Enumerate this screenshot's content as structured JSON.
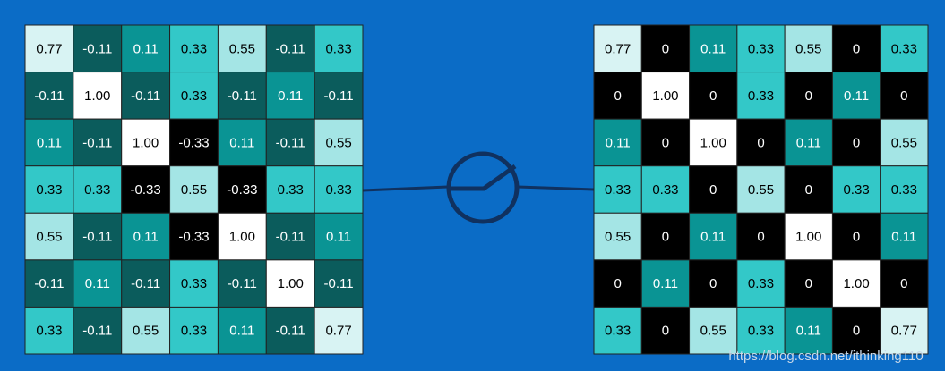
{
  "left_grid": {
    "rows": [
      [
        "0.77",
        "-0.11",
        "0.11",
        "0.33",
        "0.55",
        "-0.11",
        "0.33"
      ],
      [
        "-0.11",
        "1.00",
        "-0.11",
        "0.33",
        "-0.11",
        "0.11",
        "-0.11"
      ],
      [
        "0.11",
        "-0.11",
        "1.00",
        "-0.33",
        "0.11",
        "-0.11",
        "0.55"
      ],
      [
        "0.33",
        "0.33",
        "-0.33",
        "0.55",
        "-0.33",
        "0.33",
        "0.33"
      ],
      [
        "0.55",
        "-0.11",
        "0.11",
        "-0.33",
        "1.00",
        "-0.11",
        "0.11"
      ],
      [
        "-0.11",
        "0.11",
        "-0.11",
        "0.33",
        "-0.11",
        "1.00",
        "-0.11"
      ],
      [
        "0.33",
        "-0.11",
        "0.55",
        "0.33",
        "0.11",
        "-0.11",
        "0.77"
      ]
    ]
  },
  "right_grid": {
    "rows": [
      [
        "0.77",
        "0",
        "0.11",
        "0.33",
        "0.55",
        "0",
        "0.33"
      ],
      [
        "0",
        "1.00",
        "0",
        "0.33",
        "0",
        "0.11",
        "0"
      ],
      [
        "0.11",
        "0",
        "1.00",
        "0",
        "0.11",
        "0",
        "0.55"
      ],
      [
        "0.33",
        "0.33",
        "0",
        "0.55",
        "0",
        "0.33",
        "0.33"
      ],
      [
        "0.55",
        "0",
        "0.11",
        "0",
        "1.00",
        "0",
        "0.11"
      ],
      [
        "0",
        "0.11",
        "0",
        "0.33",
        "0",
        "1.00",
        "0"
      ],
      [
        "0.33",
        "0",
        "0.55",
        "0.33",
        "0.11",
        "0",
        "0.77"
      ]
    ]
  },
  "watermark": "https://blog.csdn.net/ithinking110"
}
